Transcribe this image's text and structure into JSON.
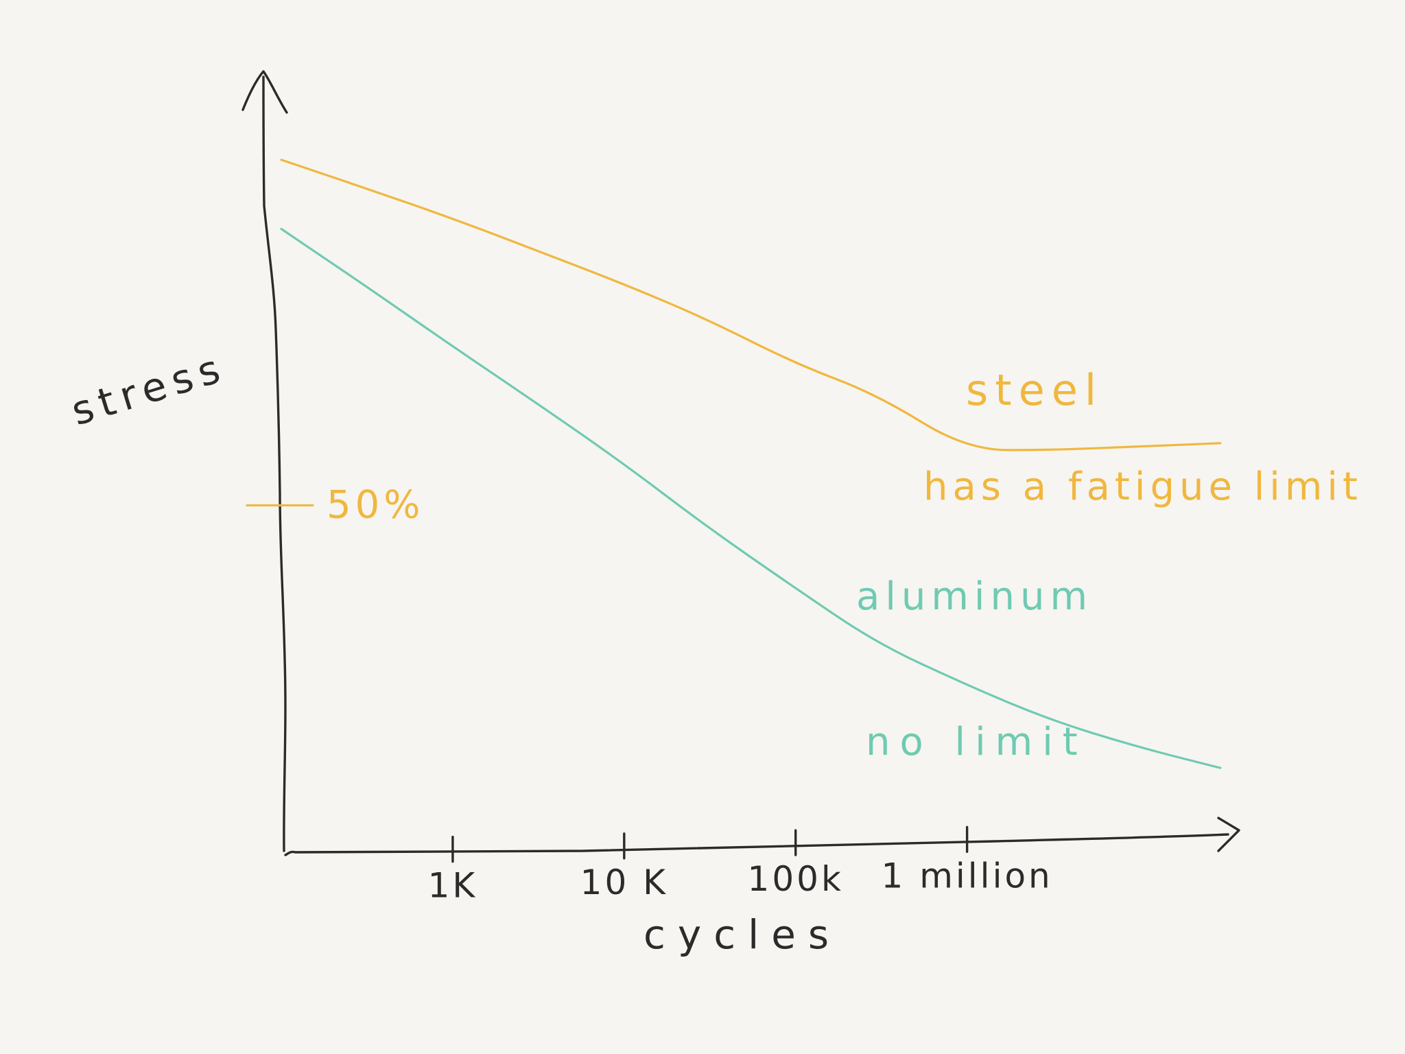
{
  "chart_data": {
    "type": "line",
    "title": "",
    "xlabel": "cycles",
    "ylabel": "stress",
    "x_scale": "log",
    "x_ticks": [
      {
        "value": 1000,
        "label": "1K"
      },
      {
        "value": 10000,
        "label": "10 K"
      },
      {
        "value": 100000,
        "label": "100k"
      },
      {
        "value": 1000000,
        "label": "1 million"
      }
    ],
    "y_ticks": [
      {
        "value": 50,
        "label": "50%"
      }
    ],
    "xlim": [
      100,
      40000000
    ],
    "ylim": [
      0,
      112
    ],
    "grid": false,
    "legend": "none",
    "series": [
      {
        "name": "steel",
        "color": "#f0b73f",
        "x": [
          100,
          300,
          1000,
          3000,
          10000,
          30000,
          100000,
          300000,
          1000000,
          3000000,
          10000000,
          30000000
        ],
        "y": [
          100,
          96,
          91.5,
          87,
          82,
          77,
          70.5,
          66,
          58,
          58,
          58.5,
          59
        ]
      },
      {
        "name": "aluminum",
        "color": "#6fcab2",
        "x": [
          100,
          300,
          1000,
          3000,
          10000,
          30000,
          100000,
          300000,
          1000000,
          3000000,
          10000000,
          30000000
        ],
        "y": [
          90,
          82,
          73,
          65,
          56,
          47,
          38,
          30,
          24,
          19,
          15,
          12
        ]
      }
    ],
    "annotations": [
      {
        "text": "steel",
        "color": "#f0b73f"
      },
      {
        "text": "has a fatigue limit",
        "color": "#f0b73f"
      },
      {
        "text": "aluminum",
        "color": "#6fcab2"
      },
      {
        "text": "no limit",
        "color": "#6fcab2"
      }
    ]
  }
}
